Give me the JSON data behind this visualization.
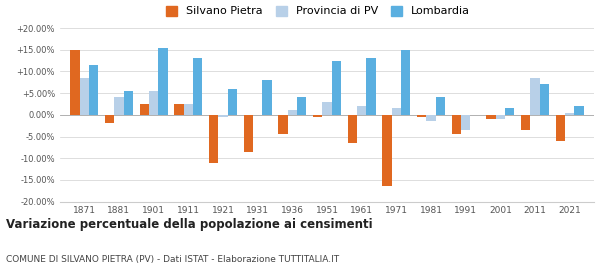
{
  "years": [
    1871,
    1881,
    1901,
    1911,
    1921,
    1931,
    1936,
    1951,
    1961,
    1971,
    1981,
    1991,
    2001,
    2011,
    2021
  ],
  "silvano": [
    15.0,
    -2.0,
    2.5,
    2.5,
    -11.0,
    -8.5,
    -4.5,
    -0.5,
    -6.5,
    -16.5,
    -0.5,
    -4.5,
    -1.0,
    -3.5,
    -6.0
  ],
  "provincia": [
    8.5,
    4.0,
    5.5,
    2.5,
    -0.5,
    0.0,
    1.0,
    3.0,
    2.0,
    1.5,
    -1.5,
    -3.5,
    -1.0,
    8.5,
    0.5
  ],
  "lombardia": [
    11.5,
    5.5,
    15.5,
    13.0,
    6.0,
    8.0,
    4.0,
    12.5,
    13.0,
    15.0,
    4.0,
    0.0,
    1.5,
    7.0,
    2.0
  ],
  "color_silvano": "#e06820",
  "color_provincia": "#b8d0e8",
  "color_lombardia": "#5aafe0",
  "ylim": [
    -20,
    20
  ],
  "yticks": [
    -20,
    -15,
    -10,
    -5,
    0,
    5,
    10,
    15,
    20
  ],
  "title": "Variazione percentuale della popolazione ai censimenti",
  "subtitle": "COMUNE DI SILVANO PIETRA (PV) - Dati ISTAT - Elaborazione TUTTITALIA.IT",
  "legend_labels": [
    "Silvano Pietra",
    "Provincia di PV",
    "Lombardia"
  ],
  "bar_width": 0.27
}
